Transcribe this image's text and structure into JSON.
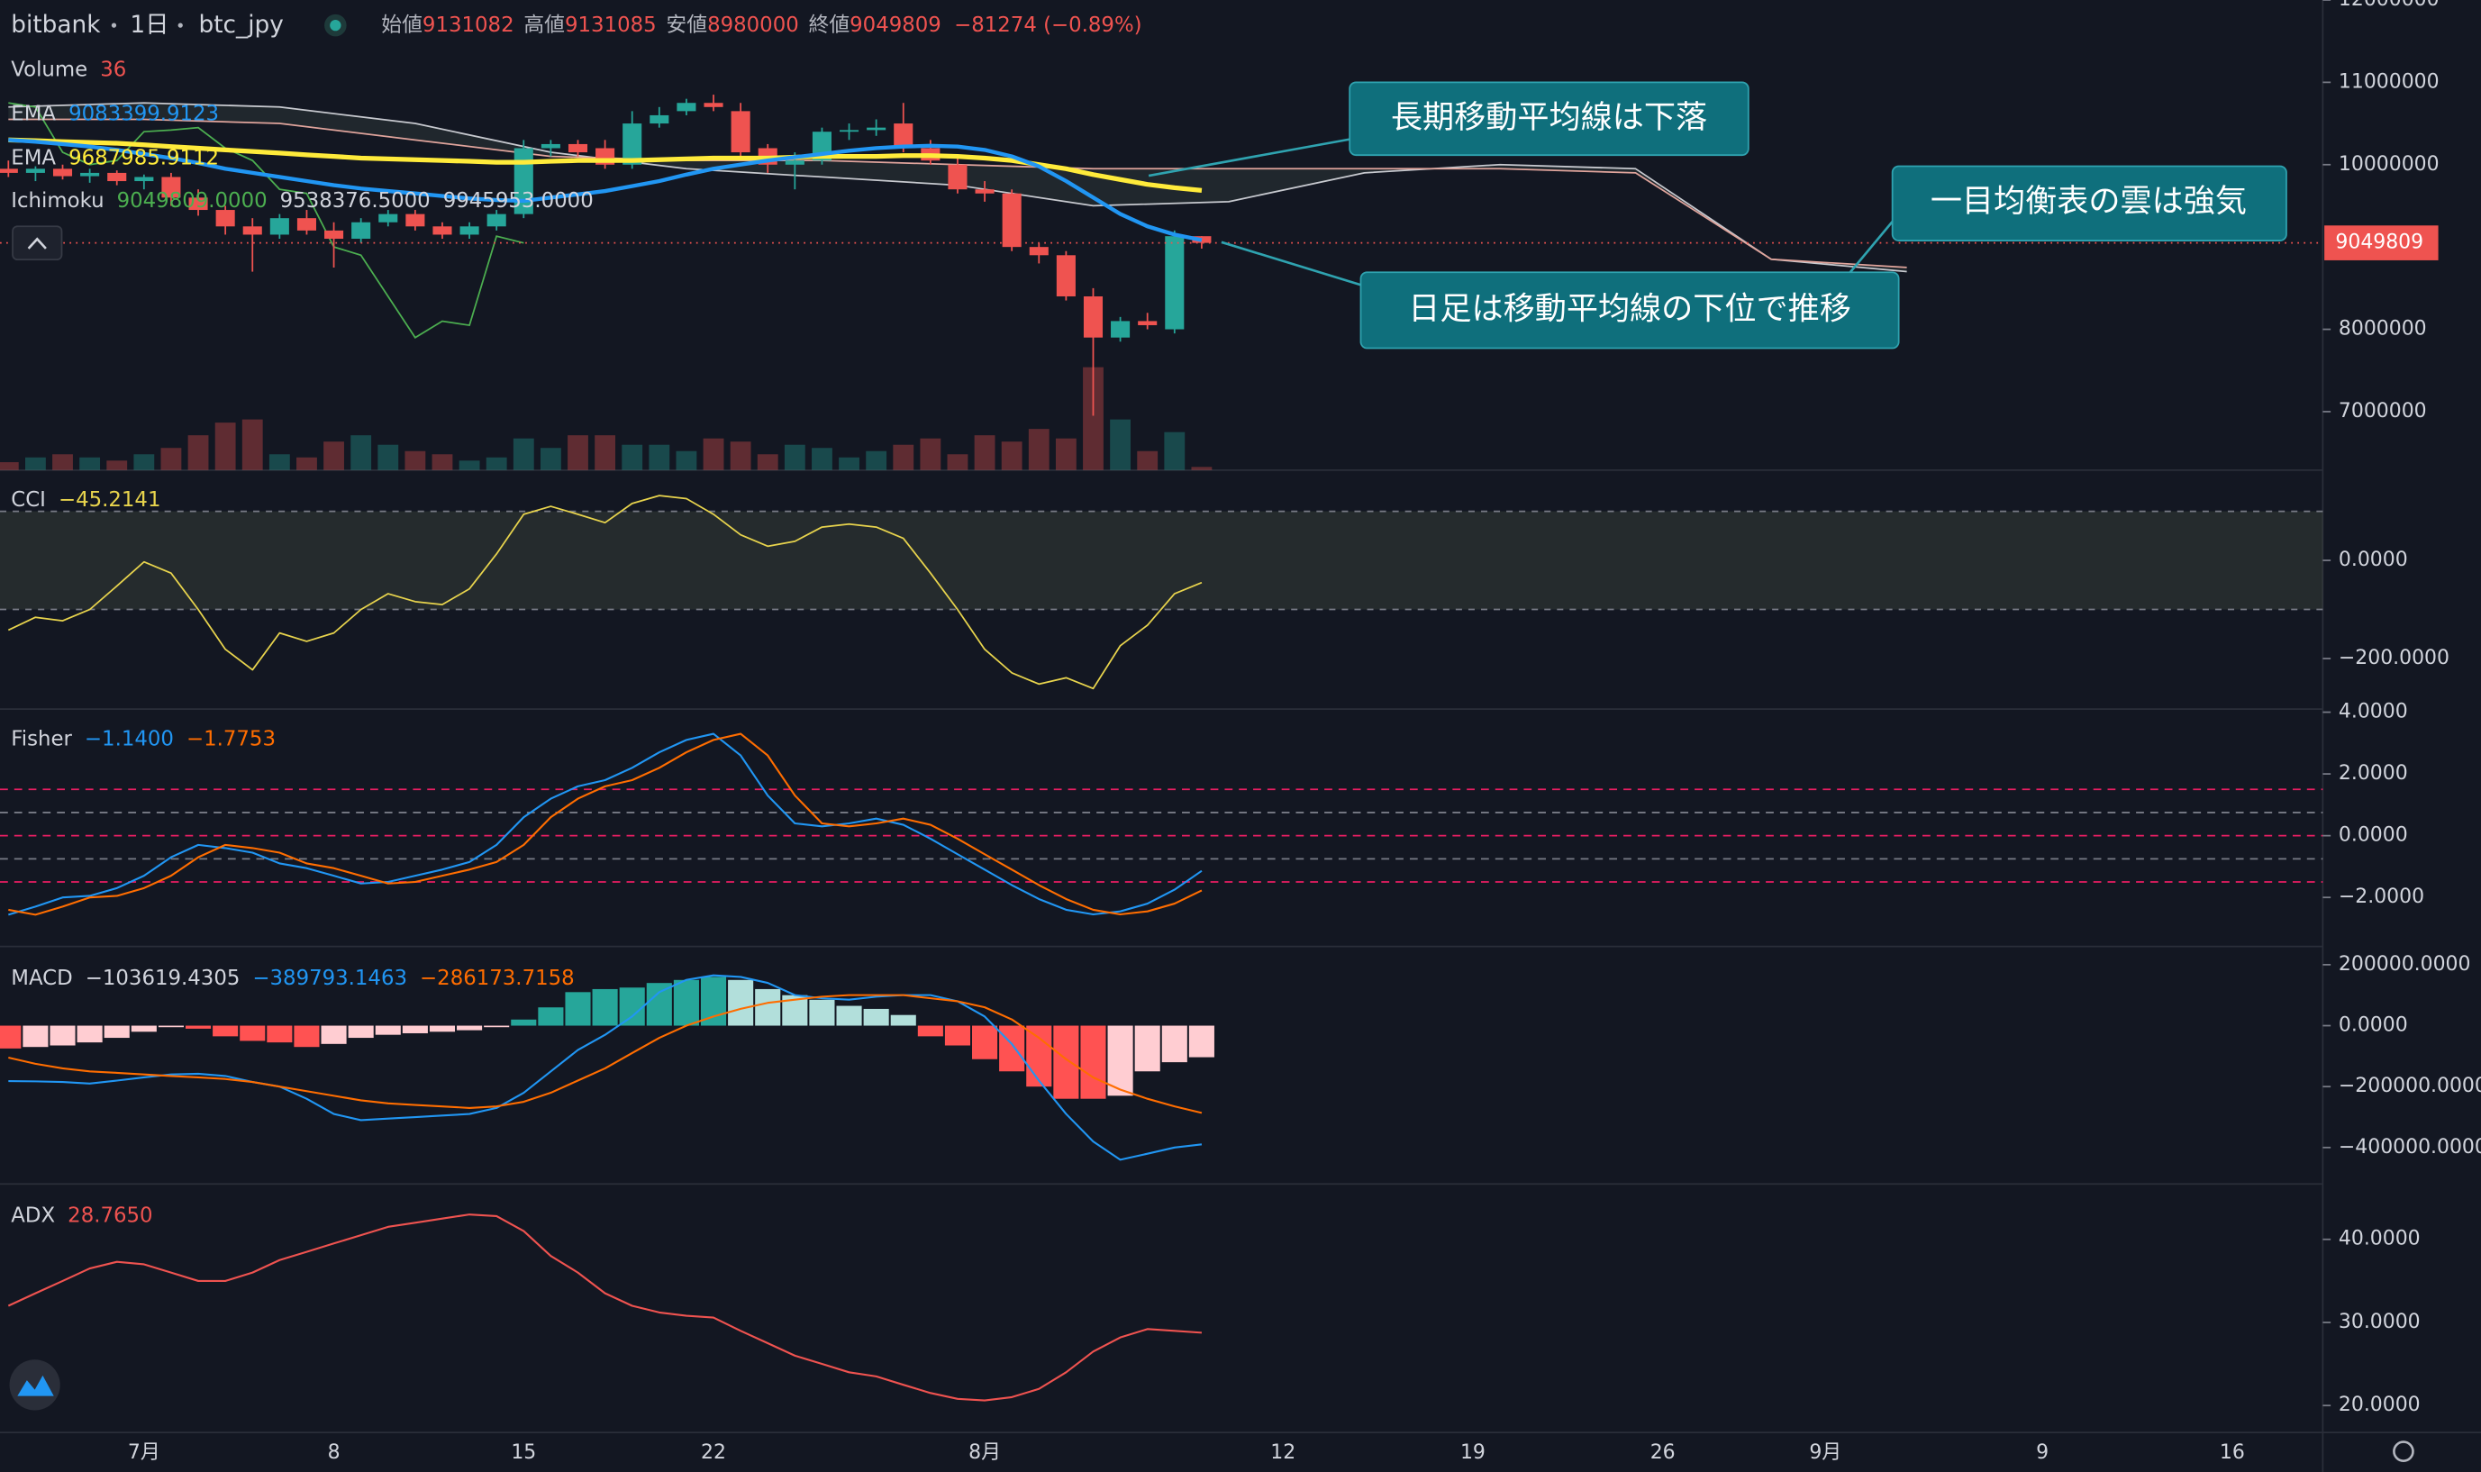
{
  "header": {
    "exchange": "bitbank",
    "interval": "1日",
    "pair": "btc_jpy",
    "ohlc": [
      {
        "label": "始値",
        "value": "9131082"
      },
      {
        "label": "高値",
        "value": "9131085"
      },
      {
        "label": "安値",
        "value": "8980000"
      },
      {
        "label": "終値",
        "value": "9049809"
      }
    ],
    "change": "−81274 (−0.89%)"
  },
  "legend": {
    "volume": {
      "label": "Volume",
      "value": "36"
    },
    "ema_short": {
      "label": "EMA",
      "value": "9083399.9123"
    },
    "ema_long": {
      "label": "EMA",
      "value": "9687985.9112"
    },
    "ichimoku": {
      "label": "Ichimoku",
      "values": [
        "9049809.0000",
        "9538376.5000",
        "9945953.0000"
      ]
    },
    "cci": {
      "label": "CCI",
      "value": "−45.2141"
    },
    "fisher": {
      "label": "Fisher",
      "values": [
        "−1.1400",
        "−1.7753"
      ]
    },
    "macd": {
      "label": "MACD",
      "values": [
        "−103619.4305",
        "−389793.1463",
        "−286173.7158"
      ]
    },
    "adx": {
      "label": "ADX",
      "value": "28.7650"
    }
  },
  "price": {
    "ylim": [
      6290000,
      12000000
    ],
    "yticks": [
      12000000,
      11000000,
      10000000,
      8000000,
      7000000
    ],
    "last_price": 9049809,
    "up_color": "#26a69a",
    "down_color": "#ef5350",
    "open": [
      9950000,
      9900000,
      9950000,
      9860000,
      9900000,
      9800000,
      9850000,
      9600000,
      9450000,
      9250000,
      9150000,
      9350000,
      9200000,
      9100000,
      9300000,
      9400000,
      9250000,
      9150000,
      9250000,
      9400000,
      10200000,
      10250000,
      10200000,
      10000000,
      10500000,
      10650000,
      10750000,
      10650000,
      10200000,
      10000000,
      10050000,
      10400000,
      10420000,
      10500000,
      10200000,
      10000000,
      9700000,
      9650000,
      9000000,
      8900000,
      8400000,
      7900000,
      8100000,
      8000000,
      9131082
    ],
    "high": [
      10050000,
      9980000,
      10000000,
      9950000,
      9930000,
      9880000,
      9900000,
      9700000,
      9500000,
      9350000,
      9400000,
      9450000,
      9300000,
      9350000,
      9450000,
      9450000,
      9300000,
      9300000,
      9450000,
      10300000,
      10300000,
      10300000,
      10300000,
      10650000,
      10700000,
      10800000,
      10850000,
      10750000,
      10250000,
      10150000,
      10450000,
      10500000,
      10550000,
      10750000,
      10300000,
      10100000,
      9800000,
      9700000,
      9050000,
      8950000,
      8500000,
      8150000,
      8200000,
      9200000,
      9131085
    ],
    "low": [
      9850000,
      9800000,
      9820000,
      9780000,
      9750000,
      9700000,
      9500000,
      9380000,
      9150000,
      8700000,
      9100000,
      9150000,
      8750000,
      9050000,
      9250000,
      9200000,
      9100000,
      9100000,
      9200000,
      9350000,
      10100000,
      10100000,
      9950000,
      9950000,
      10450000,
      10600000,
      10650000,
      10100000,
      9900000,
      9700000,
      10000000,
      10300000,
      10350000,
      10150000,
      10000000,
      9650000,
      9550000,
      8950000,
      8800000,
      8350000,
      6950000,
      7850000,
      8000000,
      7950000,
      8980000
    ],
    "close": [
      9900000,
      9950000,
      9860000,
      9900000,
      9800000,
      9850000,
      9600000,
      9450000,
      9250000,
      9150000,
      9350000,
      9200000,
      9100000,
      9300000,
      9400000,
      9250000,
      9150000,
      9250000,
      9400000,
      10200000,
      10250000,
      10150000,
      10000000,
      10500000,
      10600000,
      10750000,
      10700000,
      10150000,
      10000000,
      10050000,
      10400000,
      10420000,
      10450000,
      10200000,
      10050000,
      9700000,
      9650000,
      9000000,
      8900000,
      8400000,
      7900000,
      8100000,
      8050000,
      9131082,
      9049809
    ],
    "volume": [
      90,
      144,
      180,
      144,
      108,
      180,
      252,
      396,
      540,
      576,
      180,
      144,
      324,
      396,
      288,
      216,
      180,
      108,
      144,
      360,
      252,
      396,
      396,
      288,
      288,
      216,
      360,
      324,
      180,
      288,
      252,
      144,
      216,
      288,
      360,
      180,
      396,
      324,
      468,
      360,
      1170,
      576,
      216,
      432,
      36
    ],
    "ema_short": {
      "color": "#2196f3",
      "values": [
        10300000,
        10280000,
        10250000,
        10220000,
        10180000,
        10130000,
        10080000,
        10020000,
        9950000,
        9900000,
        9850000,
        9800000,
        9750000,
        9710000,
        9680000,
        9650000,
        9620000,
        9590000,
        9570000,
        9560000,
        9600000,
        9640000,
        9680000,
        9740000,
        9800000,
        9880000,
        9950000,
        10000000,
        10050000,
        10090000,
        10130000,
        10170000,
        10200000,
        10220000,
        10230000,
        10220000,
        10180000,
        10100000,
        9980000,
        9800000,
        9600000,
        9400000,
        9250000,
        9150000,
        9083399.9123
      ]
    },
    "ema_long": {
      "color": "#ffeb3b",
      "values": [
        10300000,
        10290000,
        10280000,
        10270000,
        10260000,
        10240000,
        10220000,
        10200000,
        10180000,
        10160000,
        10140000,
        10120000,
        10100000,
        10080000,
        10070000,
        10060000,
        10050000,
        10040000,
        10030000,
        10030000,
        10040000,
        10050000,
        10050000,
        10050000,
        10060000,
        10070000,
        10080000,
        10080000,
        10080000,
        10090000,
        10100000,
        10100000,
        10100000,
        10110000,
        10110000,
        10100000,
        10080000,
        10050000,
        10000000,
        9950000,
        9880000,
        9820000,
        9760000,
        9720000,
        9687985.9112
      ]
    },
    "ichimoku": {
      "lagging_color": "#4caf50",
      "span_a_color": "#c7c9cf",
      "span_b_color": "#e0a49c",
      "span_a": [
        10700000,
        10750000,
        10700000,
        10500000,
        10150000,
        9950000,
        9850000,
        9750000,
        9500000,
        9550000,
        9900000,
        10000000,
        9950000,
        8850000,
        8700000
      ],
      "span_b": [
        10550000,
        10550000,
        10500000,
        10300000,
        10100000,
        10050000,
        10050000,
        10000000,
        9950000,
        9950000,
        9950000,
        9950000,
        9900000,
        8850000,
        8750000
      ]
    }
  },
  "cci": {
    "ylim": [
      -303,
      184
    ],
    "yticks": [
      {
        "value": 0,
        "label": "0.0000"
      },
      {
        "value": -200,
        "label": "−200.0000"
      }
    ],
    "bands": [
      100,
      -100
    ],
    "color": "#e8d44d",
    "values": [
      -142,
      -116,
      -123,
      -100,
      -52,
      -3,
      -26,
      -100,
      -181,
      -223,
      -148,
      -165,
      -148,
      -100,
      -68,
      -84,
      -90,
      -58,
      13,
      94,
      110,
      94,
      77,
      116,
      132,
      126,
      94,
      52,
      29,
      39,
      68,
      74,
      68,
      45,
      -26,
      -100,
      -181,
      -229,
      -252,
      -239,
      -261,
      -174,
      -132,
      -68,
      -45.2141
    ]
  },
  "fisher": {
    "ylim": [
      -3.59,
      4.1
    ],
    "yticks": [
      {
        "value": 4,
        "label": "4.0000"
      },
      {
        "value": 2,
        "label": "2.0000"
      },
      {
        "value": 0,
        "label": "0.0000"
      },
      {
        "value": -2,
        "label": "−2.0000"
      }
    ],
    "levels": [
      {
        "value": 1.5,
        "color": "#e91e63"
      },
      {
        "value": 0.75,
        "color": "#787b86"
      },
      {
        "value": 0,
        "color": "#e91e63"
      },
      {
        "value": -0.75,
        "color": "#787b86"
      },
      {
        "value": -1.5,
        "color": "#e91e63"
      }
    ],
    "series": [
      {
        "color": "#2196f3",
        "values": [
          -2.56,
          -2.3,
          -2.0,
          -1.95,
          -1.7,
          -1.3,
          -0.7,
          -0.3,
          -0.4,
          -0.55,
          -0.9,
          -1.05,
          -1.3,
          -1.55,
          -1.5,
          -1.3,
          -1.1,
          -0.85,
          -0.3,
          0.6,
          1.2,
          1.6,
          1.8,
          2.2,
          2.7,
          3.1,
          3.3,
          2.6,
          1.3,
          0.4,
          0.3,
          0.4,
          0.55,
          0.35,
          -0.1,
          -0.6,
          -1.1,
          -1.6,
          -2.05,
          -2.4,
          -2.55,
          -2.45,
          -2.2,
          -1.75,
          -1.14
        ]
      },
      {
        "color": "#ff6d00",
        "values": [
          -2.4,
          -2.56,
          -2.3,
          -2.0,
          -1.95,
          -1.7,
          -1.3,
          -0.7,
          -0.3,
          -0.4,
          -0.55,
          -0.9,
          -1.05,
          -1.3,
          -1.55,
          -1.5,
          -1.3,
          -1.1,
          -0.85,
          -0.3,
          0.6,
          1.2,
          1.6,
          1.8,
          2.2,
          2.7,
          3.1,
          3.3,
          2.6,
          1.3,
          0.4,
          0.3,
          0.4,
          0.55,
          0.35,
          -0.1,
          -0.6,
          -1.1,
          -1.6,
          -2.05,
          -2.4,
          -2.55,
          -2.45,
          -2.2,
          -1.7753
        ]
      }
    ]
  },
  "macd": {
    "ylim": [
      -519480,
      259740
    ],
    "yticks": [
      {
        "value": 200000,
        "label": "200000.0000"
      },
      {
        "value": 0,
        "label": "0.0000"
      },
      {
        "value": -200000,
        "label": "−200000.0000"
      },
      {
        "value": -400000,
        "label": "−400000.0000"
      }
    ],
    "histogram_colors": {
      "rising_positive": "#26a69a",
      "falling_positive": "#b2dfdb",
      "falling_negative": "#ff5252",
      "rising_negative": "#ffcdd2"
    },
    "histogram": [
      -75000,
      -70000,
      -65000,
      -55000,
      -40000,
      -20000,
      -5000,
      -10000,
      -35000,
      -50000,
      -55000,
      -70000,
      -60000,
      -40000,
      -30000,
      -25000,
      -20000,
      -15000,
      -5000,
      20000,
      60000,
      110000,
      120000,
      125000,
      140000,
      150000,
      160000,
      150000,
      120000,
      100000,
      85000,
      65000,
      55000,
      35000,
      -35000,
      -65000,
      -110000,
      -150000,
      -200000,
      -240000,
      -240000,
      -230000,
      -150000,
      -120000,
      -103619.4305
    ],
    "series": [
      {
        "color": "#2196f3",
        "values": [
          -182000,
          -183000,
          -185000,
          -190000,
          -180000,
          -170000,
          -160000,
          -158000,
          -165000,
          -185000,
          -200000,
          -240000,
          -290000,
          -310000,
          -305000,
          -300000,
          -295000,
          -290000,
          -270000,
          -220000,
          -150000,
          -80000,
          -30000,
          30000,
          110000,
          150000,
          165000,
          160000,
          140000,
          100000,
          90000,
          85000,
          95000,
          100000,
          100000,
          80000,
          30000,
          -60000,
          -180000,
          -290000,
          -380000,
          -440000,
          -420000,
          -400000,
          -389793.1463
        ]
      },
      {
        "color": "#ff6d00",
        "values": [
          -105000,
          -125000,
          -140000,
          -150000,
          -155000,
          -160000,
          -165000,
          -170000,
          -175000,
          -185000,
          -200000,
          -215000,
          -230000,
          -245000,
          -255000,
          -260000,
          -265000,
          -270000,
          -265000,
          -250000,
          -220000,
          -180000,
          -140000,
          -90000,
          -40000,
          0,
          30000,
          55000,
          75000,
          85000,
          95000,
          100000,
          100000,
          100000,
          90000,
          80000,
          60000,
          20000,
          -40000,
          -110000,
          -170000,
          -210000,
          -240000,
          -265000,
          -286173.7158
        ]
      }
    ]
  },
  "adx": {
    "ylim": [
      16.76,
      46.67
    ],
    "yticks": [
      {
        "value": 40,
        "label": "40.0000"
      },
      {
        "value": 30,
        "label": "30.0000"
      },
      {
        "value": 20,
        "label": "20.0000"
      }
    ],
    "color": "#ef5350",
    "values": [
      32,
      33.5,
      35,
      36.5,
      37.3,
      37,
      36,
      35,
      35,
      36,
      37.5,
      38.5,
      39.5,
      40.5,
      41.5,
      42,
      42.5,
      43,
      42.8,
      41,
      38,
      36,
      33.5,
      32,
      31.2,
      30.8,
      30.6,
      29,
      27.5,
      26,
      25,
      24,
      23.5,
      22.5,
      21.5,
      20.8,
      20.6,
      21,
      22,
      24,
      26.5,
      28.2,
      29.2,
      29,
      28.765
    ]
  },
  "time_axis": [
    "7月",
    "8",
    "15",
    "22",
    "8月",
    "12",
    "19",
    "26",
    "9月",
    "9",
    "16"
  ],
  "annotations": [
    "長期移動平均線は下落",
    "一目均衡表の雲は強気",
    "日足は移動平均線の下位で推移"
  ]
}
